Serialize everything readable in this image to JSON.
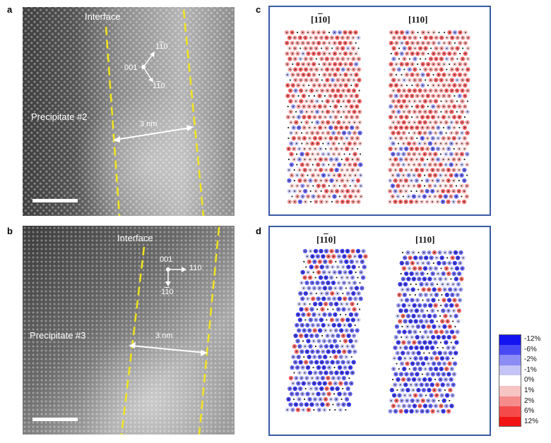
{
  "panels": {
    "a": {
      "letter": "a",
      "interface_label": "Interface",
      "precipitate_label": "Precipitate #2",
      "width_label": "3 nm",
      "dir_origin": "001",
      "dir_up": "110",
      "dir_down": "110"
    },
    "b": {
      "letter": "b",
      "interface_label": "Interface",
      "precipitate_label": "Precipitate  #3",
      "width_label": "3 nm",
      "dir_origin": "001",
      "dir_right": "110",
      "dir_down": "110"
    },
    "c": {
      "letter": "c",
      "left_title": "[110]",
      "right_title": "[110]"
    },
    "d": {
      "letter": "d",
      "left_title": "[110]",
      "right_title": "[110]"
    }
  },
  "legend": {
    "items": [
      {
        "label": "-12%",
        "color": "#1414f0"
      },
      {
        "label": "-6%",
        "color": "#4a4af5"
      },
      {
        "label": "-2%",
        "color": "#8c8cf5"
      },
      {
        "label": "-1%",
        "color": "#c4c4f7"
      },
      {
        "label": "0%",
        "color": "#ffffff"
      },
      {
        "label": "1%",
        "color": "#f7c4c4"
      },
      {
        "label": "2%",
        "color": "#f58c8c"
      },
      {
        "label": "6%",
        "color": "#f54a4a"
      },
      {
        "label": "12%",
        "color": "#f01414"
      }
    ]
  },
  "colors": {
    "interface_line": "#f2e41c",
    "panel_border": "#3a5aa6",
    "strain_negative": "#3b3bd6",
    "strain_positive": "#e0393b"
  }
}
